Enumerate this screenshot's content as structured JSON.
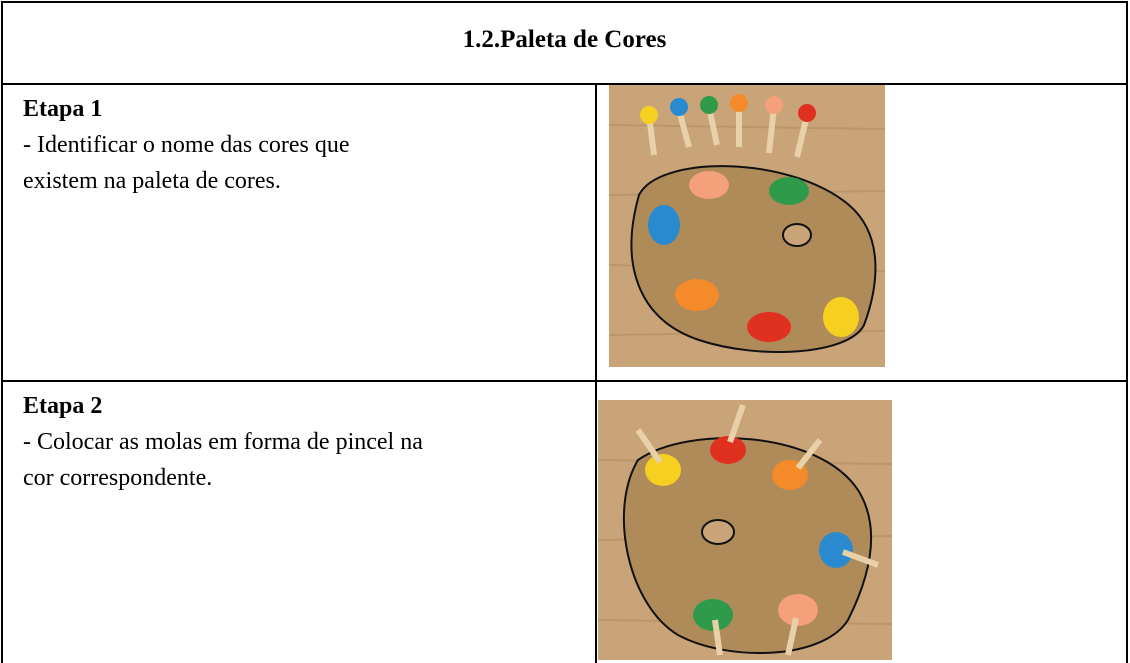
{
  "header": {
    "title": "1.2.Paleta de Cores"
  },
  "rows": [
    {
      "step": "Etapa 1",
      "lines": [
        "- Identificar o nome das cores que",
        "existem na paleta de cores."
      ]
    },
    {
      "step": "Etapa 2",
      "lines": [
        "- Colocar as molas em forma de pincel na",
        "cor correspondente."
      ]
    }
  ]
}
